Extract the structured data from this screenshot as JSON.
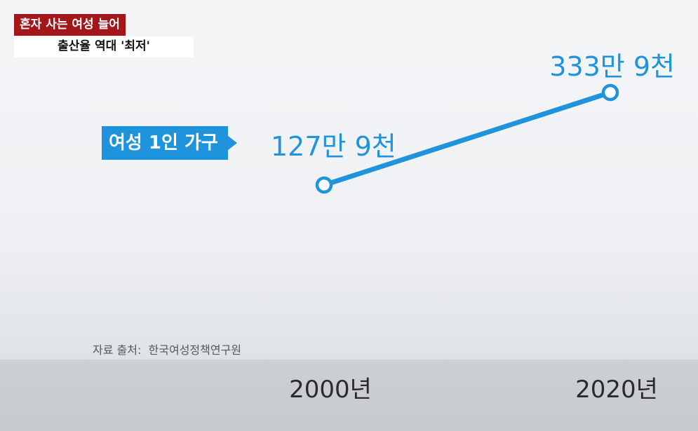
{
  "header": {
    "headline": "혼자 사는 여성 늘어",
    "subheadline": "출산율 역대 '최저'"
  },
  "source": "자료 출처:  한국여성정책연구원",
  "colors": {
    "accent": "#1f93dc",
    "banner_red": "#a3161a"
  },
  "chart_data": {
    "type": "line",
    "categories": [
      "2000년",
      "2020년"
    ],
    "series": [
      {
        "name": "여성 1인 가구",
        "values": [
          1279000,
          3339000
        ],
        "value_labels": [
          "127만 9천",
          "333만 9천"
        ]
      }
    ],
    "xlabel": "",
    "ylabel": "",
    "grid": false
  }
}
